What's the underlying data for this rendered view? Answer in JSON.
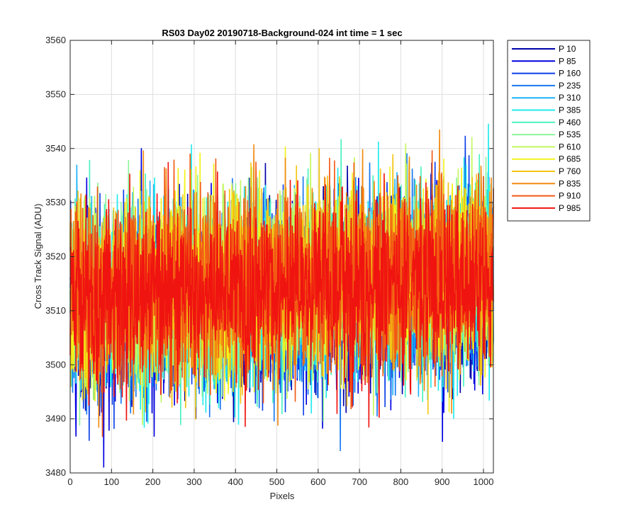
{
  "chart_data": {
    "type": "line",
    "title": "RS03 Day02 20190718-Background-024 int time = 1 sec",
    "xlabel": "Pixels",
    "ylabel": "Cross Track Signal (ADU)",
    "xlim": [
      0,
      1024
    ],
    "ylim": [
      3480,
      3560
    ],
    "xticks": [
      0,
      100,
      200,
      300,
      400,
      500,
      600,
      700,
      800,
      900,
      1000
    ],
    "yticks": [
      3480,
      3490,
      3500,
      3510,
      3520,
      3530,
      3540,
      3550,
      3560
    ],
    "grid": true,
    "legend_position": "outside-top-right",
    "series": [
      {
        "name": "P 10",
        "color": "#0000aa",
        "mean": 3512,
        "std": 8.5
      },
      {
        "name": "P 85",
        "color": "#0000e0",
        "mean": 3512,
        "std": 8.5
      },
      {
        "name": "P 160",
        "color": "#0b3fe8",
        "mean": 3513,
        "std": 8.5
      },
      {
        "name": "P 235",
        "color": "#1577f0",
        "mean": 3513,
        "std": 8.5
      },
      {
        "name": "P 310",
        "color": "#1bb3f6",
        "mean": 3514,
        "std": 8.5
      },
      {
        "name": "P 385",
        "color": "#22eaee",
        "mean": 3514,
        "std": 8.5
      },
      {
        "name": "P 460",
        "color": "#48f2c0",
        "mean": 3514,
        "std": 8.5
      },
      {
        "name": "P 535",
        "color": "#8cf59a",
        "mean": 3515,
        "std": 8.5
      },
      {
        "name": "P 610",
        "color": "#c2f85c",
        "mean": 3515,
        "std": 8.5
      },
      {
        "name": "P 685",
        "color": "#f2f21a",
        "mean": 3515,
        "std": 8.5
      },
      {
        "name": "P 760",
        "color": "#f4c414",
        "mean": 3515,
        "std": 8.5
      },
      {
        "name": "P 835",
        "color": "#f28a12",
        "mean": 3515,
        "std": 8.5
      },
      {
        "name": "P 910",
        "color": "#f25a14",
        "mean": 3515,
        "std": 8.5
      },
      {
        "name": "P 985",
        "color": "#f01410",
        "mean": 3514,
        "std": 8.5
      }
    ],
    "n_points": 1024
  }
}
